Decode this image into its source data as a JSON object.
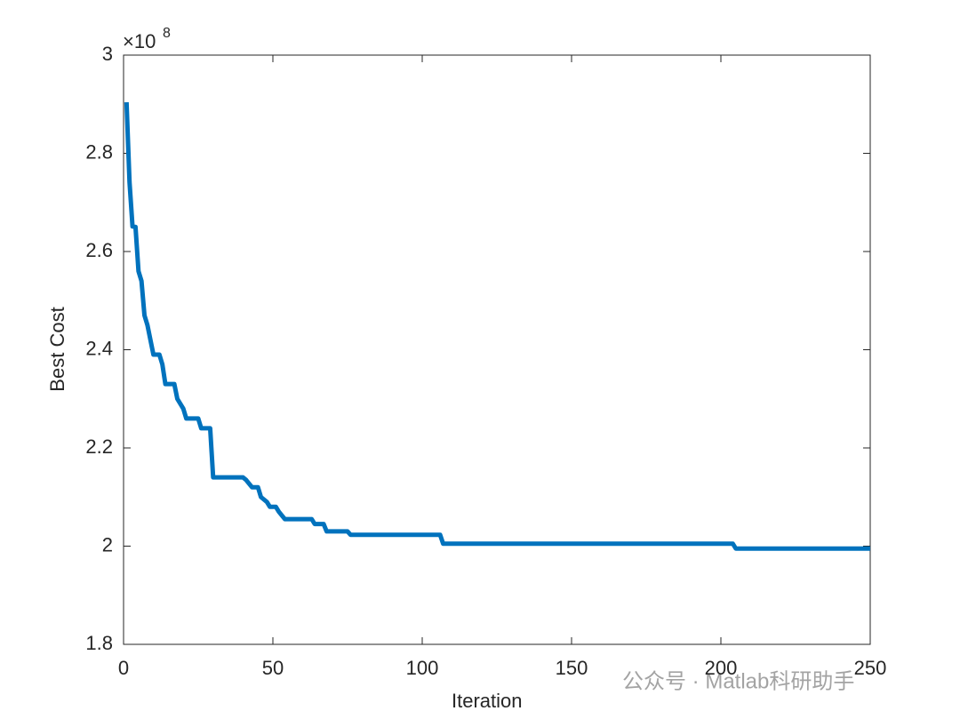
{
  "chart_data": {
    "type": "line",
    "xlabel": "Iteration",
    "ylabel": "Best Cost",
    "y_multiplier": "×10",
    "y_exponent": 8,
    "watermark": "公众号 · Matlab科研助手",
    "xlim": [
      0,
      250
    ],
    "xticks": [
      0,
      50,
      100,
      150,
      200,
      250
    ],
    "ylim": [
      1.8,
      3
    ],
    "yticks": [
      1.8,
      2,
      2.2,
      2.4,
      2.6,
      2.8,
      3
    ],
    "grid": false,
    "series": [
      {
        "name": "Best Cost",
        "color": "#0072bd",
        "x": [
          1,
          2,
          3,
          4,
          5,
          6,
          7,
          8,
          9,
          10,
          12,
          13,
          14,
          17,
          18,
          20,
          21,
          25,
          26,
          29,
          30,
          40,
          41,
          43,
          45,
          46,
          48,
          49,
          51,
          52,
          54,
          63,
          64,
          67,
          68,
          75,
          76,
          106,
          107,
          204,
          205,
          250
        ],
        "values": [
          2.904,
          2.741,
          2.651,
          2.65,
          2.56,
          2.54,
          2.47,
          2.45,
          2.42,
          2.39,
          2.39,
          2.37,
          2.33,
          2.33,
          2.3,
          2.28,
          2.26,
          2.26,
          2.24,
          2.24,
          2.14,
          2.14,
          2.135,
          2.12,
          2.12,
          2.1,
          2.09,
          2.08,
          2.08,
          2.07,
          2.055,
          2.055,
          2.045,
          2.045,
          2.03,
          2.03,
          2.023,
          2.023,
          2.005,
          2.005,
          1.995,
          1.995
        ]
      }
    ]
  }
}
